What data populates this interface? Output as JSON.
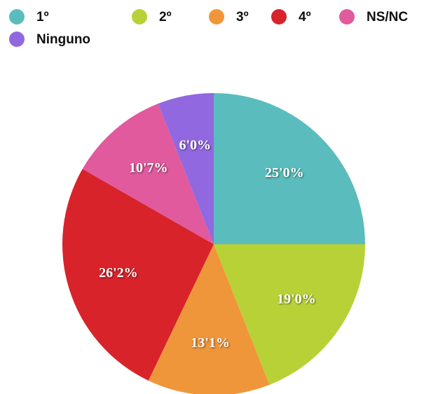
{
  "chart_data": {
    "type": "pie",
    "categories": [
      "1º",
      "2º",
      "3º",
      "4º",
      "NS/NC",
      "Ninguno"
    ],
    "values": [
      25.0,
      19.0,
      13.1,
      26.2,
      10.7,
      6.0
    ],
    "value_labels": [
      "25'0%",
      "19'0%",
      "13'1%",
      "26'2%",
      "10'7%",
      "6'0%"
    ],
    "colors": [
      "#5bbcbd",
      "#b8d136",
      "#f0963a",
      "#d8232a",
      "#e05a9d",
      "#9168e0"
    ],
    "legend": "top"
  }
}
